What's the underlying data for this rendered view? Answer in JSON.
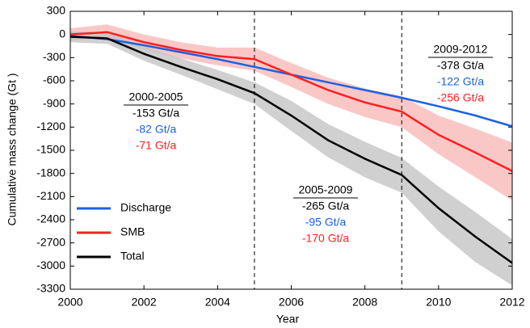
{
  "chart_data": {
    "type": "line",
    "x_label": "Year",
    "y_label": "Cumulative mass change (Gt )",
    "x": [
      2000,
      2001,
      2002,
      2003,
      2004,
      2005,
      2006,
      2007,
      2008,
      2009,
      2010,
      2011,
      2012
    ],
    "series": [
      {
        "name": "Discharge",
        "color": "#1a63e0",
        "values": [
          -20,
          -60,
          -140,
          -230,
          -320,
          -420,
          -520,
          -620,
          -720,
          -820,
          -930,
          -1050,
          -1190
        ]
      },
      {
        "name": "SMB",
        "color": "#ff2020",
        "band_color": "#f9b9b9",
        "values": [
          0,
          30,
          -100,
          -200,
          -280,
          -320,
          -520,
          -720,
          -880,
          -1000,
          -1300,
          -1530,
          -1770
        ],
        "lower": [
          -80,
          -50,
          -200,
          -310,
          -400,
          -470,
          -680,
          -900,
          -1070,
          -1200,
          -1550,
          -1850,
          -2150
        ],
        "upper": [
          80,
          130,
          0,
          -100,
          -170,
          -170,
          -370,
          -560,
          -700,
          -800,
          -1050,
          -1220,
          -1400
        ]
      },
      {
        "name": "Total",
        "color": "#000000",
        "band_color": "#c4c4c4",
        "values": [
          -30,
          -50,
          -250,
          -420,
          -580,
          -760,
          -1050,
          -1370,
          -1610,
          -1820,
          -2250,
          -2620,
          -2960
        ],
        "lower": [
          -100,
          -120,
          -340,
          -520,
          -710,
          -900,
          -1250,
          -1590,
          -1850,
          -2050,
          -2550,
          -2950,
          -3250
        ],
        "upper": [
          40,
          30,
          -150,
          -310,
          -460,
          -620,
          -860,
          -1160,
          -1390,
          -1600,
          -1970,
          -2300,
          -2650
        ]
      }
    ],
    "xlim": [
      2000,
      2012
    ],
    "xticks": [
      2000,
      2002,
      2004,
      2006,
      2008,
      2010,
      2012
    ],
    "ylim": [
      -3300,
      300
    ],
    "yticks": [
      300,
      0,
      -300,
      -600,
      -900,
      -1200,
      -1500,
      -1800,
      -2100,
      -2400,
      -2700,
      -3000,
      -3300
    ],
    "vlines": [
      2005,
      2009
    ],
    "legend": "lower left",
    "annotations": [
      {
        "title": "2000-2005",
        "lines": [
          {
            "text": "-153 Gt/a",
            "color": "#000000"
          },
          {
            "text": "-82 Gt/a",
            "color": "#1a63e0"
          },
          {
            "text": "-71 Gt/a",
            "color": "#ff2020"
          }
        ]
      },
      {
        "title": "2005-2009",
        "lines": [
          {
            "text": "-265 Gt/a",
            "color": "#000000"
          },
          {
            "text": "-95 Gt/a",
            "color": "#1a63e0"
          },
          {
            "text": "-170 Gt/a",
            "color": "#ff2020"
          }
        ]
      },
      {
        "title": "2009-2012",
        "lines": [
          {
            "text": "-378 Gt/a",
            "color": "#000000"
          },
          {
            "text": "-122 Gt/a",
            "color": "#1a63e0"
          },
          {
            "text": "-256 Gt/a",
            "color": "#ff2020"
          }
        ]
      }
    ]
  }
}
